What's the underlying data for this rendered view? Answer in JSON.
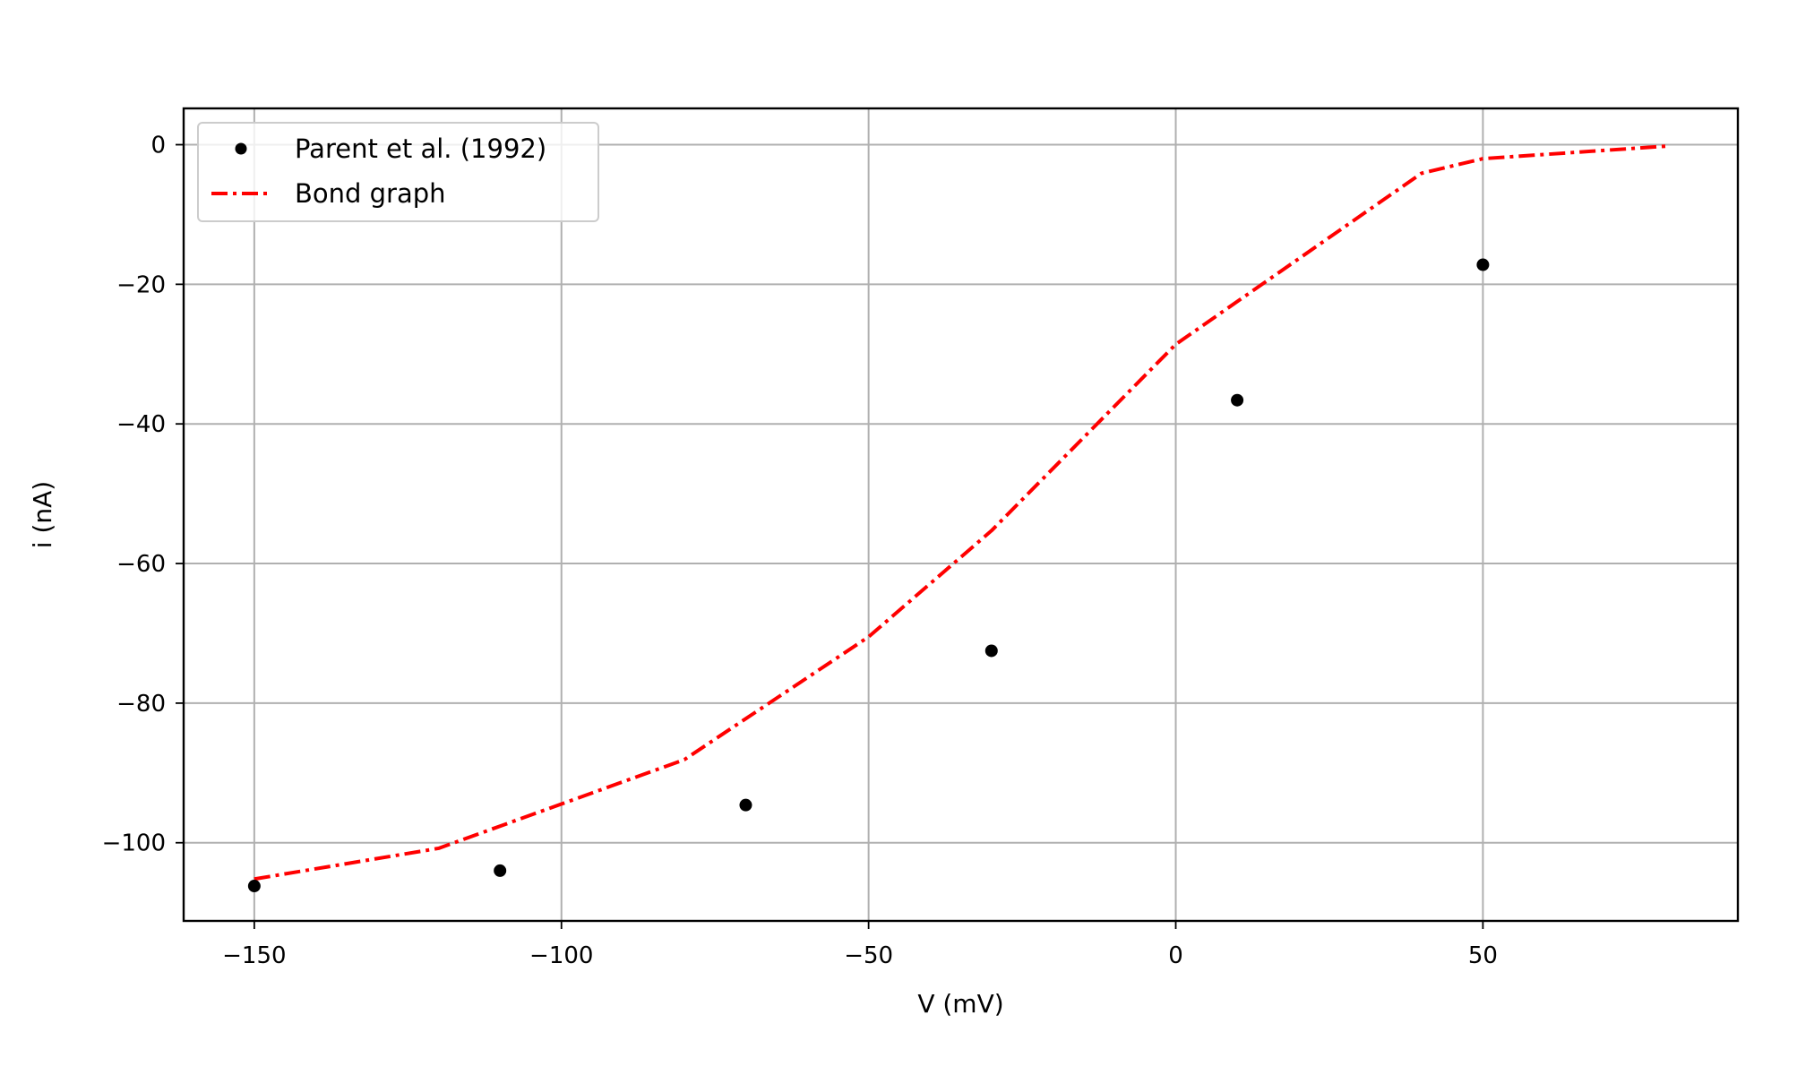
{
  "chart_data": {
    "type": "line",
    "title": "",
    "xlabel": "V (mV)",
    "ylabel": "i (nA)",
    "xlim": [
      -161.5,
      91.5
    ],
    "ylim": [
      -111.2,
      5.2
    ],
    "xticks": [
      -150,
      -100,
      -50,
      0,
      50
    ],
    "xtick_labels": [
      "−150",
      "−100",
      "−50",
      "0",
      "50"
    ],
    "yticks": [
      0,
      -20,
      -40,
      -60,
      -80,
      -100
    ],
    "ytick_labels": [
      "0",
      "−20",
      "−40",
      "−60",
      "−80",
      "−100"
    ],
    "grid": true,
    "legend_position": "top-left",
    "series": [
      {
        "name": "Parent et al. (1992)",
        "style": "markers",
        "color": "#000000",
        "x": [
          -150,
          -110,
          -70,
          -30,
          10,
          50
        ],
        "y": [
          -106.2,
          -104.0,
          -94.6,
          -72.5,
          -36.6,
          -17.2
        ]
      },
      {
        "name": "Bond graph",
        "style": "dashdot",
        "color": "#ff0000",
        "x": [
          -150,
          -120,
          -80,
          -50,
          -30,
          0,
          40,
          50,
          80
        ],
        "y": [
          -105.2,
          -100.8,
          -88.1,
          -70.5,
          -55.3,
          -28.6,
          -4.1,
          -2.0,
          -0.2
        ]
      }
    ]
  }
}
